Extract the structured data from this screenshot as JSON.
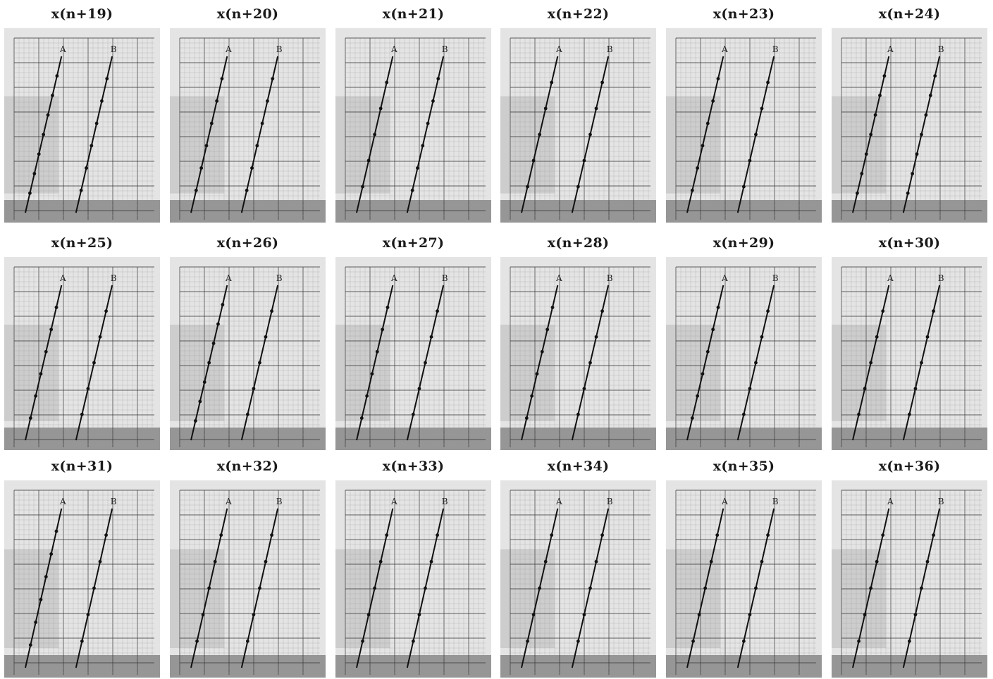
{
  "colors": {
    "paper": "#e4e4e4",
    "ink": "#111111",
    "grid": "#3a3a3a"
  },
  "chart_data": [
    {
      "type": "line",
      "title": "x(n+19)",
      "series": [
        {
          "name": "A",
          "x": [
            0,
            10
          ],
          "y": [
            0,
            10
          ],
          "points": [
            1,
            2,
            3,
            4,
            5,
            6,
            7
          ]
        },
        {
          "name": "B",
          "x": [
            0,
            10
          ],
          "y": [
            0,
            10
          ],
          "points": [
            1,
            2,
            3,
            4,
            5,
            6
          ]
        }
      ]
    },
    {
      "type": "line",
      "title": "x(n+20)",
      "series": [
        {
          "name": "A",
          "x": [
            0,
            10
          ],
          "y": [
            0,
            10
          ],
          "points": [
            1,
            2,
            3,
            4,
            5,
            6
          ]
        },
        {
          "name": "B",
          "x": [
            0,
            10
          ],
          "y": [
            0,
            10
          ],
          "points": [
            1,
            2,
            3,
            4,
            5,
            6
          ]
        }
      ]
    },
    {
      "type": "line",
      "title": "x(n+21)",
      "series": [
        {
          "name": "A",
          "x": [
            0,
            10
          ],
          "y": [
            0,
            10
          ],
          "points": [
            1,
            2,
            3,
            4,
            5
          ]
        },
        {
          "name": "B",
          "x": [
            0,
            10
          ],
          "y": [
            0,
            10
          ],
          "points": [
            1,
            2,
            3,
            4,
            5,
            6
          ]
        }
      ]
    },
    {
      "type": "line",
      "title": "x(n+22)",
      "series": [
        {
          "name": "A",
          "x": [
            0,
            10
          ],
          "y": [
            0,
            10
          ],
          "points": [
            1,
            2,
            3,
            4,
            5
          ]
        },
        {
          "name": "B",
          "x": [
            0,
            10
          ],
          "y": [
            0,
            10
          ],
          "points": [
            1,
            2,
            3,
            4,
            5
          ]
        }
      ]
    },
    {
      "type": "line",
      "title": "x(n+23)",
      "series": [
        {
          "name": "A",
          "x": [
            0,
            10
          ],
          "y": [
            0,
            10
          ],
          "points": [
            1,
            2,
            3,
            4,
            5,
            6
          ]
        },
        {
          "name": "B",
          "x": [
            0,
            10
          ],
          "y": [
            0,
            10
          ],
          "points": [
            1,
            2,
            3,
            4,
            5
          ]
        }
      ]
    },
    {
      "type": "line",
      "title": "x(n+24)",
      "series": [
        {
          "name": "A",
          "x": [
            0,
            10
          ],
          "y": [
            0,
            10
          ],
          "points": [
            1,
            2,
            3,
            4,
            5,
            6,
            7
          ]
        },
        {
          "name": "B",
          "x": [
            0,
            10
          ],
          "y": [
            0,
            10
          ],
          "points": [
            1,
            2,
            3,
            4,
            5,
            6,
            7
          ]
        }
      ]
    },
    {
      "type": "line",
      "title": "x(n+25)",
      "series": [
        {
          "name": "A",
          "x": [
            0,
            10
          ],
          "y": [
            0,
            10
          ],
          "points": [
            1,
            2,
            3,
            4,
            5,
            6
          ]
        },
        {
          "name": "B",
          "x": [
            0,
            10
          ],
          "y": [
            0,
            10
          ],
          "points": [
            1,
            2,
            3,
            4,
            5
          ]
        }
      ]
    },
    {
      "type": "line",
      "title": "x(n+26)",
      "series": [
        {
          "name": "A",
          "x": [
            0,
            10
          ],
          "y": [
            0,
            10
          ],
          "points": [
            1,
            2,
            3,
            4,
            5,
            6,
            7
          ]
        },
        {
          "name": "B",
          "x": [
            0,
            10
          ],
          "y": [
            0,
            10
          ],
          "points": [
            1,
            2,
            3,
            4,
            5
          ]
        }
      ]
    },
    {
      "type": "line",
      "title": "x(n+27)",
      "series": [
        {
          "name": "A",
          "x": [
            0,
            10
          ],
          "y": [
            0,
            10
          ],
          "points": [
            1,
            2,
            3,
            4,
            5,
            6
          ]
        },
        {
          "name": "B",
          "x": [
            0,
            10
          ],
          "y": [
            0,
            10
          ],
          "points": [
            1,
            2,
            3,
            4,
            5
          ]
        }
      ]
    },
    {
      "type": "line",
      "title": "x(n+28)",
      "series": [
        {
          "name": "A",
          "x": [
            0,
            10
          ],
          "y": [
            0,
            10
          ],
          "points": [
            1,
            2,
            3,
            4,
            5,
            6
          ]
        },
        {
          "name": "B",
          "x": [
            0,
            10
          ],
          "y": [
            0,
            10
          ],
          "points": [
            1,
            2,
            3,
            4,
            5
          ]
        }
      ]
    },
    {
      "type": "line",
      "title": "x(n+29)",
      "series": [
        {
          "name": "A",
          "x": [
            0,
            10
          ],
          "y": [
            0,
            10
          ],
          "points": [
            1,
            2,
            3,
            4,
            5,
            6
          ]
        },
        {
          "name": "B",
          "x": [
            0,
            10
          ],
          "y": [
            0,
            10
          ],
          "points": [
            1,
            2,
            3,
            4,
            5
          ]
        }
      ]
    },
    {
      "type": "line",
      "title": "x(n+30)",
      "series": [
        {
          "name": "A",
          "x": [
            0,
            10
          ],
          "y": [
            0,
            10
          ],
          "points": [
            1,
            2,
            3,
            4,
            5
          ]
        },
        {
          "name": "B",
          "x": [
            0,
            10
          ],
          "y": [
            0,
            10
          ],
          "points": [
            1,
            2,
            3,
            4,
            5
          ]
        }
      ]
    },
    {
      "type": "line",
      "title": "x(n+31)",
      "series": [
        {
          "name": "A",
          "x": [
            0,
            10
          ],
          "y": [
            0,
            10
          ],
          "points": [
            1,
            2,
            3,
            4,
            5,
            6
          ]
        },
        {
          "name": "B",
          "x": [
            0,
            10
          ],
          "y": [
            0,
            10
          ],
          "points": [
            1,
            2,
            3,
            4,
            5
          ]
        }
      ]
    },
    {
      "type": "line",
      "title": "x(n+32)",
      "series": [
        {
          "name": "A",
          "x": [
            0,
            10
          ],
          "y": [
            0,
            10
          ],
          "points": [
            1,
            2,
            3,
            4,
            5
          ]
        },
        {
          "name": "B",
          "x": [
            0,
            10
          ],
          "y": [
            0,
            10
          ],
          "points": [
            1,
            2,
            3,
            4,
            5
          ]
        }
      ]
    },
    {
      "type": "line",
      "title": "x(n+33)",
      "series": [
        {
          "name": "A",
          "x": [
            0,
            10
          ],
          "y": [
            0,
            10
          ],
          "points": [
            1,
            2,
            3,
            4,
            5
          ]
        },
        {
          "name": "B",
          "x": [
            0,
            10
          ],
          "y": [
            0,
            10
          ],
          "points": [
            1,
            2,
            3,
            4,
            5
          ]
        }
      ]
    },
    {
      "type": "line",
      "title": "x(n+34)",
      "series": [
        {
          "name": "A",
          "x": [
            0,
            10
          ],
          "y": [
            0,
            10
          ],
          "points": [
            1,
            2,
            3,
            4,
            5
          ]
        },
        {
          "name": "B",
          "x": [
            0,
            10
          ],
          "y": [
            0,
            10
          ],
          "points": [
            1,
            2,
            3,
            4,
            5
          ]
        }
      ]
    },
    {
      "type": "line",
      "title": "x(n+35)",
      "series": [
        {
          "name": "A",
          "x": [
            0,
            10
          ],
          "y": [
            0,
            10
          ],
          "points": [
            1,
            2,
            3,
            4,
            5
          ]
        },
        {
          "name": "B",
          "x": [
            0,
            10
          ],
          "y": [
            0,
            10
          ],
          "points": [
            1,
            2,
            3,
            4,
            5
          ]
        }
      ]
    },
    {
      "type": "line",
      "title": "x(n+36)",
      "series": [
        {
          "name": "A",
          "x": [
            0,
            10
          ],
          "y": [
            0,
            10
          ],
          "points": [
            1,
            2,
            3,
            4,
            5
          ]
        },
        {
          "name": "B",
          "x": [
            0,
            10
          ],
          "y": [
            0,
            10
          ],
          "points": [
            1,
            2,
            3,
            4,
            5
          ]
        }
      ]
    }
  ]
}
